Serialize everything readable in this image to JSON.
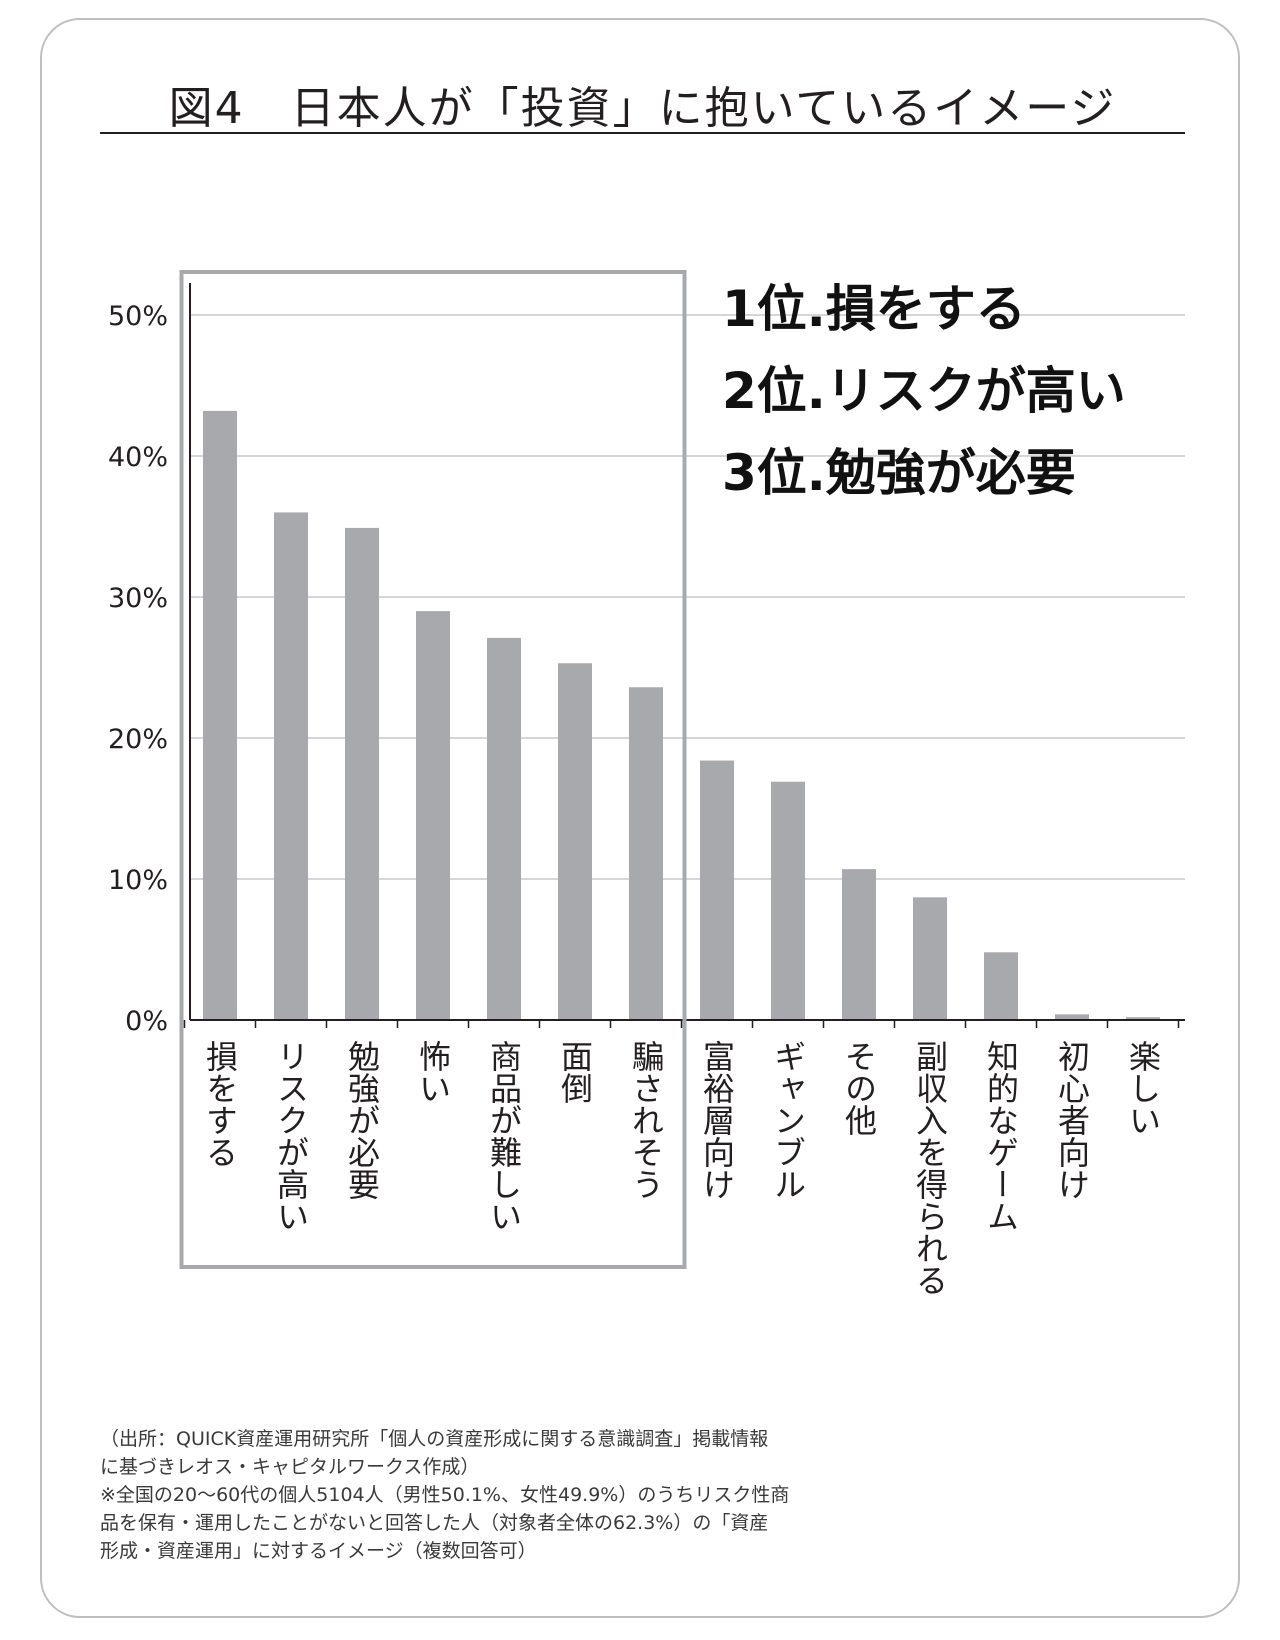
{
  "title": "図4　日本人が「投資」に抱いているイメージ",
  "rankings": [
    "1位.損をする",
    "2位.リスクが高い",
    "3位.勉強が必要"
  ],
  "notes": [
    "（出所：QUICK資産運用研究所「個人の資産形成に関する意識調査」掲載情報",
    "に基づきレオス・キャピタルワークス作成）",
    "※全国の20〜60代の個人5104人（男性50.1%、女性49.9%）のうちリスク性商",
    "品を保有・運用したことがないと回答した人（対象者全体の62.3%）の「資産",
    "形成・資産運用」に対するイメージ（複数回答可）"
  ],
  "colors": {
    "bar": "#a7a9ac",
    "highlight_box": "#a7a9ac",
    "gridline": "#c8c8c8",
    "axis": "#231f20",
    "text": "#231f20"
  },
  "chart_data": {
    "type": "bar",
    "title": "図4　日本人が「投資」に抱いているイメージ",
    "xlabel": "",
    "ylabel": "",
    "ylim": [
      0,
      50
    ],
    "yticks": [
      "0%",
      "10%",
      "20%",
      "30%",
      "40%",
      "50%"
    ],
    "grid": true,
    "categories": [
      "損をする",
      "リスクが高い",
      "勉強が必要",
      "怖い",
      "商品が難しい",
      "面倒",
      "騙されそう",
      "富裕層向け",
      "ギャンブル",
      "その他",
      "副収入を得られる",
      "知的なゲーム",
      "初心者向け",
      "楽しい"
    ],
    "values": [
      43.2,
      36.0,
      34.9,
      29.0,
      27.1,
      25.3,
      23.6,
      18.4,
      16.9,
      10.7,
      8.7,
      4.8,
      0.4,
      0.2
    ],
    "highlighted_categories": [
      "損をする",
      "リスクが高い",
      "勉強が必要",
      "怖い",
      "商品が難しい",
      "面倒",
      "騙されそう"
    ]
  }
}
